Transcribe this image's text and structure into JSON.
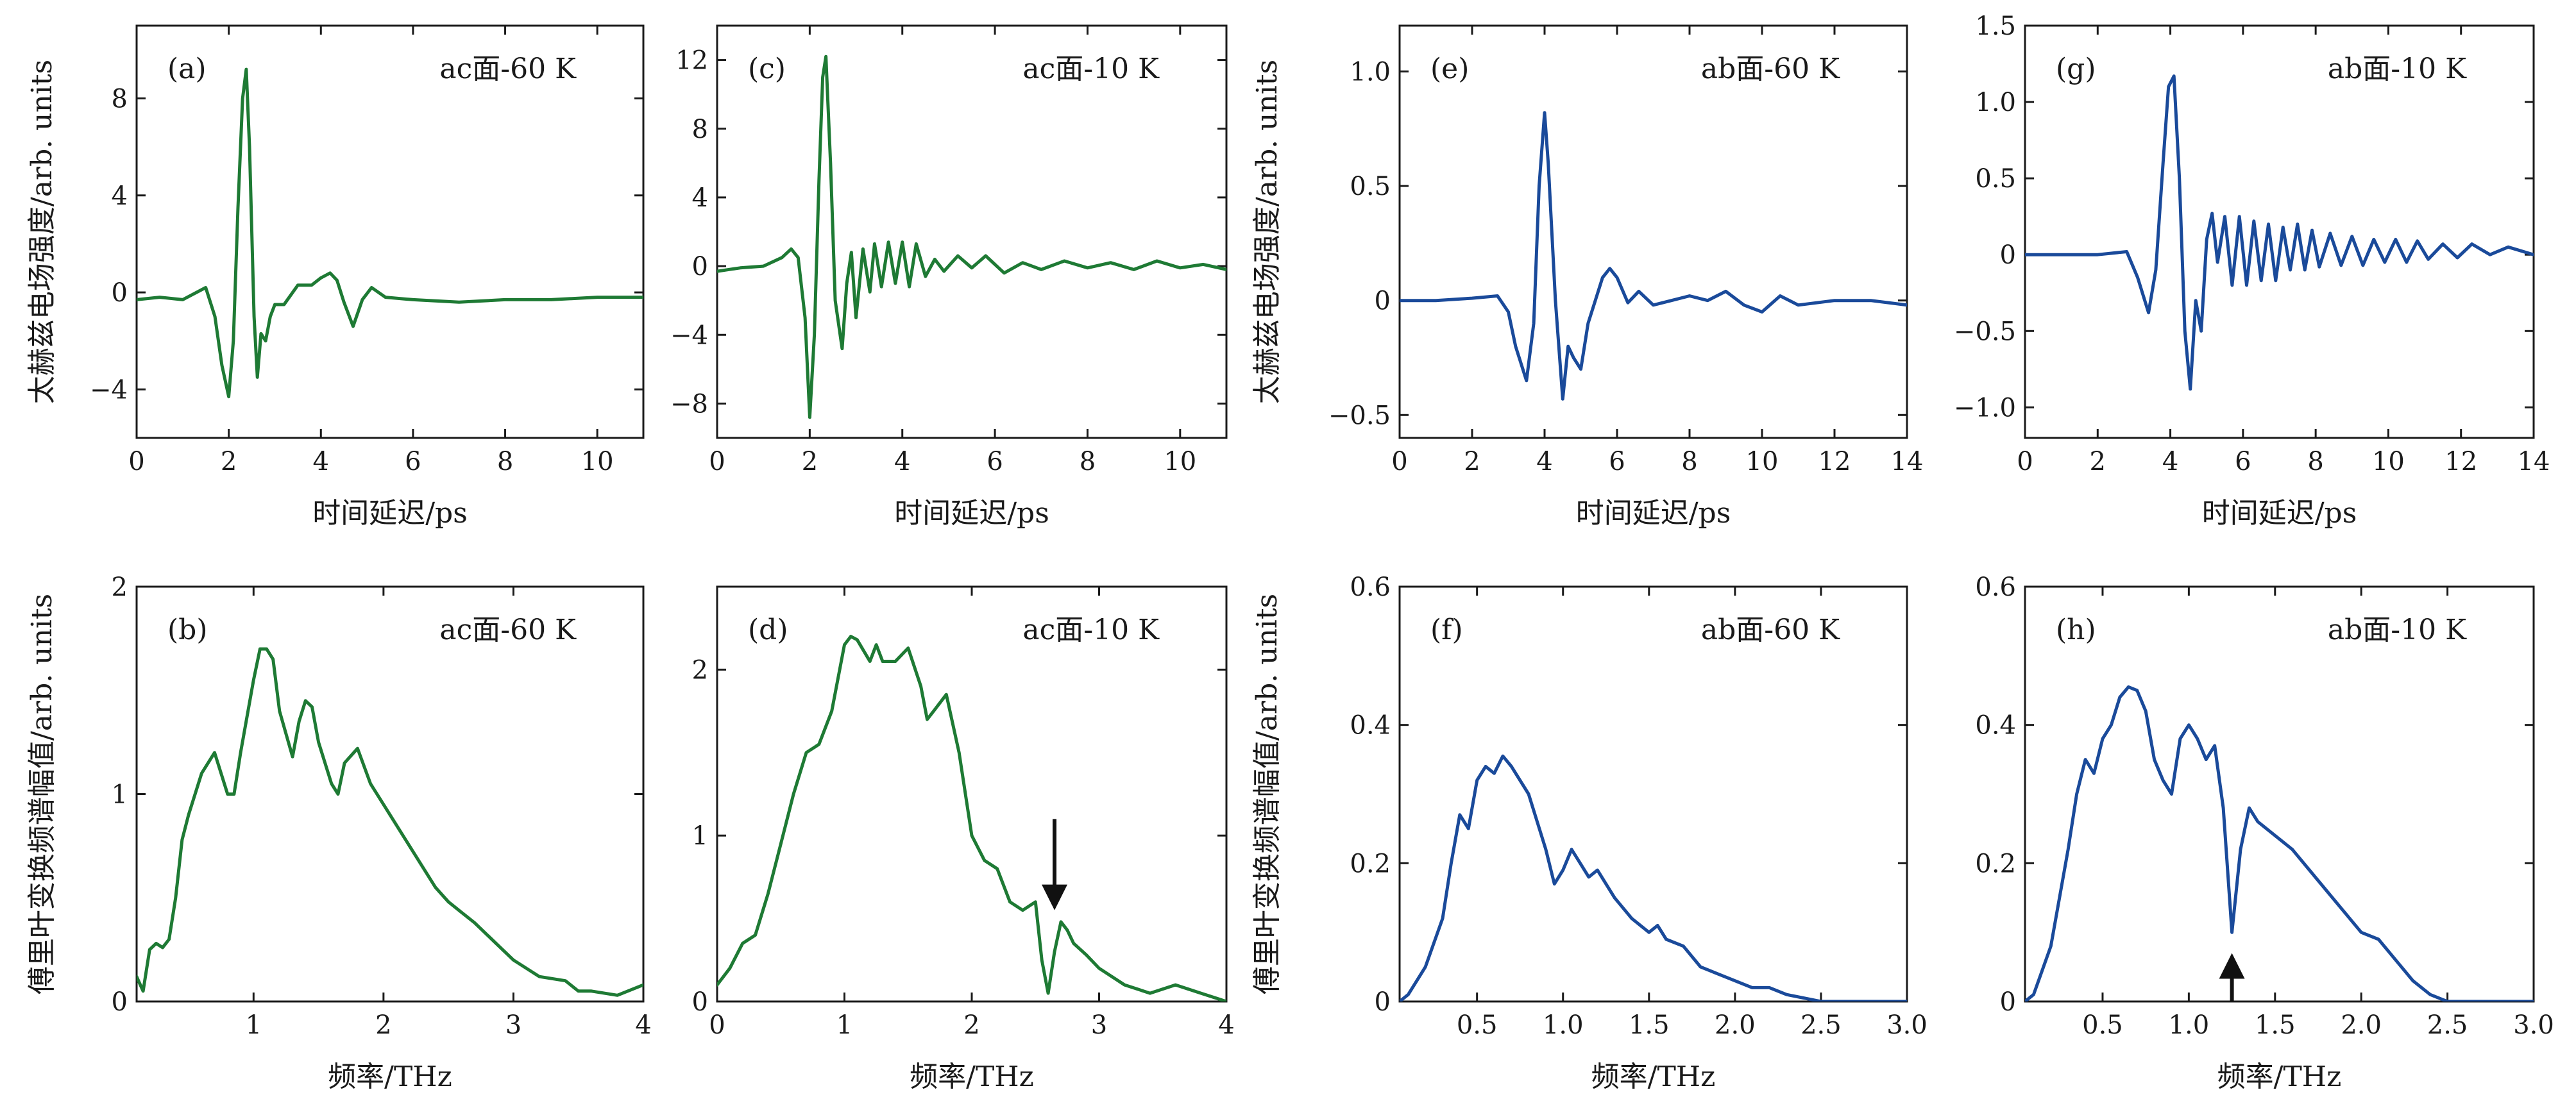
{
  "colors": {
    "green": "#1e7a34",
    "blue": "#1a4a9a",
    "text": "#1a1a1a",
    "arrow": "#111111"
  },
  "chart_data": [
    {
      "id": "(a)",
      "type": "line",
      "title": "ac面-60 K",
      "color": "green",
      "xlabel": "时间延迟/ps",
      "ylabel": "太赫兹电场强度/arb. units",
      "xlim": [
        0,
        11
      ],
      "ylim": [
        -6,
        11
      ],
      "xticks": [
        0,
        2,
        4,
        6,
        8,
        10
      ],
      "yticks": [
        -4,
        0,
        4,
        8
      ],
      "xtick_labels": [
        "0",
        "2",
        "4",
        "6",
        "8",
        "10"
      ],
      "ytick_labels": [
        "−4",
        "0",
        "4",
        "8"
      ],
      "series": [
        {
          "x": [
            0,
            0.5,
            1.0,
            1.5,
            1.7,
            1.85,
            2.0,
            2.1,
            2.2,
            2.3,
            2.38,
            2.45,
            2.55,
            2.62,
            2.7,
            2.8,
            2.9,
            3.0,
            3.2,
            3.5,
            3.8,
            4.0,
            4.2,
            4.35,
            4.5,
            4.7,
            4.9,
            5.1,
            5.4,
            6.0,
            7.0,
            8.0,
            9.0,
            10.0,
            11.0
          ],
          "y": [
            -0.3,
            -0.2,
            -0.3,
            0.2,
            -1.0,
            -3.0,
            -4.3,
            -2.0,
            3.5,
            8.0,
            9.2,
            6.0,
            -1.0,
            -3.5,
            -1.7,
            -2.0,
            -1.0,
            -0.5,
            -0.5,
            0.3,
            0.3,
            0.6,
            0.8,
            0.5,
            -0.4,
            -1.4,
            -0.3,
            0.2,
            -0.2,
            -0.3,
            -0.4,
            -0.3,
            -0.3,
            -0.2,
            -0.2
          ]
        }
      ]
    },
    {
      "id": "(c)",
      "type": "line",
      "title": "ac面-10 K",
      "color": "green",
      "xlabel": "时间延迟/ps",
      "ylabel": "",
      "xlim": [
        0,
        11
      ],
      "ylim": [
        -10,
        14
      ],
      "xticks": [
        0,
        2,
        4,
        6,
        8,
        10
      ],
      "yticks": [
        -8,
        -4,
        0,
        4,
        8,
        12
      ],
      "xtick_labels": [
        "0",
        "2",
        "4",
        "6",
        "8",
        "10"
      ],
      "ytick_labels": [
        "−8",
        "−4",
        "0",
        "4",
        "8",
        "12"
      ],
      "series": [
        {
          "x": [
            0,
            0.5,
            1.0,
            1.4,
            1.6,
            1.75,
            1.9,
            2.0,
            2.1,
            2.2,
            2.28,
            2.35,
            2.45,
            2.55,
            2.7,
            2.8,
            2.9,
            3.0,
            3.15,
            3.3,
            3.4,
            3.55,
            3.7,
            3.85,
            4.0,
            4.15,
            4.3,
            4.5,
            4.7,
            4.9,
            5.2,
            5.5,
            5.8,
            6.2,
            6.6,
            7.0,
            7.5,
            8.0,
            8.5,
            9.0,
            9.5,
            10.0,
            10.5,
            11.0
          ],
          "y": [
            -0.3,
            -0.1,
            0.0,
            0.5,
            1.0,
            0.5,
            -3.0,
            -8.8,
            -4.0,
            5.0,
            11.0,
            12.2,
            6.0,
            -2.0,
            -4.8,
            -1.0,
            0.8,
            -3.0,
            1.0,
            -1.5,
            1.3,
            -1.2,
            1.4,
            -1.0,
            1.4,
            -1.2,
            1.3,
            -0.6,
            0.4,
            -0.3,
            0.6,
            -0.1,
            0.6,
            -0.4,
            0.2,
            -0.2,
            0.3,
            -0.1,
            0.2,
            -0.2,
            0.3,
            -0.1,
            0.1,
            -0.2
          ]
        }
      ]
    },
    {
      "id": "(e)",
      "type": "line",
      "title": "ab面-60 K",
      "color": "blue",
      "xlabel": "时间延迟/ps",
      "ylabel": "太赫兹电场强度/arb. units",
      "xlim": [
        0,
        14
      ],
      "ylim": [
        -0.6,
        1.2
      ],
      "xticks": [
        0,
        2,
        4,
        6,
        8,
        10,
        12,
        14
      ],
      "yticks": [
        -0.5,
        0,
        0.5,
        1.0
      ],
      "xtick_labels": [
        "0",
        "2",
        "4",
        "6",
        "8",
        "10",
        "12",
        "14"
      ],
      "ytick_labels": [
        "−0.5",
        "0",
        "0.5",
        "1.0"
      ],
      "series": [
        {
          "x": [
            0,
            1.0,
            2.0,
            2.7,
            3.0,
            3.2,
            3.5,
            3.7,
            3.85,
            4.0,
            4.1,
            4.3,
            4.5,
            4.65,
            4.8,
            5.0,
            5.2,
            5.4,
            5.6,
            5.8,
            6.0,
            6.3,
            6.6,
            7.0,
            7.5,
            8.0,
            8.5,
            9.0,
            9.5,
            10.0,
            10.5,
            11.0,
            12.0,
            13.0,
            14.0
          ],
          "y": [
            0,
            0.0,
            0.01,
            0.02,
            -0.05,
            -0.2,
            -0.35,
            -0.1,
            0.5,
            0.82,
            0.6,
            0.0,
            -0.43,
            -0.2,
            -0.25,
            -0.3,
            -0.1,
            0.0,
            0.1,
            0.14,
            0.1,
            -0.01,
            0.04,
            -0.02,
            0.0,
            0.02,
            0.0,
            0.04,
            -0.02,
            -0.05,
            0.02,
            -0.02,
            0.0,
            0.0,
            -0.02
          ]
        }
      ]
    },
    {
      "id": "(g)",
      "type": "line",
      "title": "ab面-10 K",
      "color": "blue",
      "xlabel": "时间延迟/ps",
      "ylabel": "",
      "xlim": [
        0,
        14
      ],
      "ylim": [
        -1.2,
        1.5
      ],
      "xticks": [
        0,
        2,
        4,
        6,
        8,
        10,
        12,
        14
      ],
      "yticks": [
        -1.0,
        -0.5,
        0,
        0.5,
        1.0,
        1.5
      ],
      "xtick_labels": [
        "0",
        "2",
        "4",
        "6",
        "8",
        "10",
        "12",
        "14"
      ],
      "ytick_labels": [
        "−1.0",
        "−0.5",
        "0",
        "0.5",
        "1.0",
        "1.5"
      ],
      "series": [
        {
          "x": [
            0,
            1.0,
            2.0,
            2.8,
            3.1,
            3.4,
            3.6,
            3.8,
            3.95,
            4.1,
            4.25,
            4.4,
            4.55,
            4.7,
            4.85,
            5.0,
            5.15,
            5.3,
            5.5,
            5.7,
            5.9,
            6.1,
            6.3,
            6.5,
            6.7,
            6.9,
            7.1,
            7.3,
            7.5,
            7.7,
            7.9,
            8.1,
            8.4,
            8.7,
            9.0,
            9.3,
            9.6,
            9.9,
            10.2,
            10.5,
            10.8,
            11.1,
            11.5,
            11.9,
            12.3,
            12.8,
            13.3,
            14.0
          ],
          "y": [
            0,
            0.0,
            0.0,
            0.02,
            -0.15,
            -0.38,
            -0.1,
            0.6,
            1.1,
            1.17,
            0.5,
            -0.5,
            -0.88,
            -0.3,
            -0.5,
            0.1,
            0.27,
            -0.05,
            0.25,
            -0.2,
            0.25,
            -0.2,
            0.22,
            -0.17,
            0.2,
            -0.17,
            0.18,
            -0.1,
            0.2,
            -0.1,
            0.16,
            -0.08,
            0.14,
            -0.07,
            0.12,
            -0.07,
            0.1,
            -0.05,
            0.1,
            -0.05,
            0.09,
            -0.03,
            0.07,
            -0.02,
            0.07,
            0.0,
            0.05,
            0.0
          ]
        }
      ]
    },
    {
      "id": "(b)",
      "type": "line",
      "title": "ac面-60 K",
      "color": "green",
      "xlabel": "频率/THz",
      "ylabel": "傅里叶变换频谱幅值/arb. units",
      "xlim": [
        0.1,
        4
      ],
      "ylim": [
        0,
        2
      ],
      "xticks": [
        1,
        2,
        3,
        4
      ],
      "yticks": [
        0,
        1,
        2
      ],
      "xtick_labels": [
        "1",
        "2",
        "3",
        "4"
      ],
      "ytick_labels": [
        "0",
        "1",
        "2"
      ],
      "series": [
        {
          "x": [
            0.1,
            0.15,
            0.2,
            0.25,
            0.3,
            0.35,
            0.4,
            0.45,
            0.5,
            0.6,
            0.7,
            0.75,
            0.8,
            0.85,
            0.9,
            1.0,
            1.05,
            1.1,
            1.15,
            1.2,
            1.3,
            1.35,
            1.4,
            1.45,
            1.5,
            1.6,
            1.65,
            1.7,
            1.8,
            1.9,
            2.0,
            2.2,
            2.4,
            2.5,
            2.6,
            2.7,
            2.8,
            3.0,
            3.2,
            3.4,
            3.5,
            3.6,
            3.8,
            4.0
          ],
          "y": [
            0.12,
            0.05,
            0.25,
            0.28,
            0.26,
            0.3,
            0.5,
            0.78,
            0.9,
            1.1,
            1.2,
            1.1,
            1.0,
            1.0,
            1.2,
            1.55,
            1.7,
            1.7,
            1.65,
            1.4,
            1.18,
            1.35,
            1.45,
            1.42,
            1.25,
            1.05,
            1.0,
            1.15,
            1.22,
            1.05,
            0.95,
            0.75,
            0.55,
            0.48,
            0.43,
            0.38,
            0.32,
            0.2,
            0.12,
            0.1,
            0.05,
            0.05,
            0.03,
            0.08
          ]
        }
      ]
    },
    {
      "id": "(d)",
      "type": "line",
      "title": "ac面-10 K",
      "color": "green",
      "xlabel": "频率/THz",
      "ylabel": "",
      "xlim": [
        0,
        4
      ],
      "ylim": [
        0,
        2.5
      ],
      "xticks": [
        0,
        1,
        2,
        3,
        4
      ],
      "yticks": [
        0,
        1,
        2
      ],
      "xtick_labels": [
        "0",
        "1",
        "2",
        "3",
        "4"
      ],
      "ytick_labels": [
        "0",
        "1",
        "2"
      ],
      "series": [
        {
          "x": [
            0,
            0.1,
            0.2,
            0.3,
            0.4,
            0.5,
            0.6,
            0.7,
            0.8,
            0.9,
            1.0,
            1.05,
            1.1,
            1.2,
            1.25,
            1.3,
            1.4,
            1.5,
            1.6,
            1.65,
            1.7,
            1.8,
            1.9,
            2.0,
            2.1,
            2.2,
            2.3,
            2.4,
            2.5,
            2.55,
            2.6,
            2.65,
            2.7,
            2.75,
            2.8,
            2.9,
            3.0,
            3.2,
            3.4,
            3.6,
            3.8,
            4.0
          ],
          "y": [
            0.1,
            0.2,
            0.35,
            0.4,
            0.65,
            0.95,
            1.25,
            1.5,
            1.55,
            1.75,
            2.15,
            2.2,
            2.18,
            2.05,
            2.15,
            2.05,
            2.05,
            2.13,
            1.9,
            1.7,
            1.75,
            1.85,
            1.5,
            1.0,
            0.85,
            0.8,
            0.6,
            0.55,
            0.6,
            0.25,
            0.05,
            0.3,
            0.48,
            0.43,
            0.35,
            0.28,
            0.2,
            0.1,
            0.05,
            0.1,
            0.05,
            0.0
          ]
        }
      ],
      "annotation": {
        "type": "arrow-down",
        "x": 2.65,
        "y_tip": 0.55,
        "y_tail": 1.1
      }
    },
    {
      "id": "(f)",
      "type": "line",
      "title": "ab面-60 K",
      "color": "blue",
      "xlabel": "频率/THz",
      "ylabel": "傅里叶变换频谱幅值/arb. units",
      "xlim": [
        0.05,
        3.0
      ],
      "ylim": [
        0,
        0.6
      ],
      "xticks": [
        0.5,
        1.0,
        1.5,
        2.0,
        2.5,
        3.0
      ],
      "yticks": [
        0,
        0.2,
        0.4,
        0.6
      ],
      "xtick_labels": [
        "0.5",
        "1.0",
        "1.5",
        "2.0",
        "2.5",
        "3.0"
      ],
      "ytick_labels": [
        "0",
        "0.2",
        "0.4",
        "0.6"
      ],
      "series": [
        {
          "x": [
            0.05,
            0.1,
            0.2,
            0.3,
            0.35,
            0.4,
            0.45,
            0.5,
            0.55,
            0.6,
            0.65,
            0.7,
            0.8,
            0.9,
            0.95,
            1.0,
            1.05,
            1.1,
            1.15,
            1.2,
            1.3,
            1.4,
            1.5,
            1.55,
            1.6,
            1.7,
            1.8,
            1.9,
            2.0,
            2.1,
            2.2,
            2.3,
            2.5,
            2.7,
            3.0
          ],
          "y": [
            0.0,
            0.01,
            0.05,
            0.12,
            0.2,
            0.27,
            0.25,
            0.32,
            0.34,
            0.33,
            0.355,
            0.34,
            0.3,
            0.22,
            0.17,
            0.19,
            0.22,
            0.2,
            0.18,
            0.19,
            0.15,
            0.12,
            0.1,
            0.11,
            0.09,
            0.08,
            0.05,
            0.04,
            0.03,
            0.02,
            0.02,
            0.01,
            0.0,
            0.0,
            0.0
          ]
        }
      ]
    },
    {
      "id": "(h)",
      "type": "line",
      "title": "ab面-10 K",
      "color": "blue",
      "xlabel": "频率/THz",
      "ylabel": "",
      "xlim": [
        0.05,
        3.0
      ],
      "ylim": [
        0,
        0.6
      ],
      "xticks": [
        0.5,
        1.0,
        1.5,
        2.0,
        2.5,
        3.0
      ],
      "yticks": [
        0,
        0.2,
        0.4,
        0.6
      ],
      "xtick_labels": [
        "0.5",
        "1.0",
        "1.5",
        "2.0",
        "2.5",
        "3.0"
      ],
      "ytick_labels": [
        "0",
        "0.2",
        "0.4",
        "0.6"
      ],
      "series": [
        {
          "x": [
            0.05,
            0.1,
            0.2,
            0.3,
            0.35,
            0.4,
            0.45,
            0.5,
            0.55,
            0.6,
            0.65,
            0.7,
            0.75,
            0.8,
            0.85,
            0.9,
            0.95,
            1.0,
            1.05,
            1.1,
            1.15,
            1.2,
            1.25,
            1.3,
            1.35,
            1.4,
            1.5,
            1.6,
            1.7,
            1.8,
            1.9,
            2.0,
            2.1,
            2.2,
            2.3,
            2.4,
            2.5,
            2.7,
            3.0
          ],
          "y": [
            0.0,
            0.01,
            0.08,
            0.22,
            0.3,
            0.35,
            0.33,
            0.38,
            0.4,
            0.44,
            0.455,
            0.45,
            0.42,
            0.35,
            0.32,
            0.3,
            0.38,
            0.4,
            0.38,
            0.35,
            0.37,
            0.28,
            0.1,
            0.22,
            0.28,
            0.26,
            0.24,
            0.22,
            0.19,
            0.16,
            0.13,
            0.1,
            0.09,
            0.06,
            0.03,
            0.01,
            0.0,
            0.0,
            0.0
          ]
        }
      ],
      "annotation": {
        "type": "arrow-up",
        "x": 1.25,
        "y_tip": 0.07,
        "y_tail": 0.0
      }
    }
  ]
}
